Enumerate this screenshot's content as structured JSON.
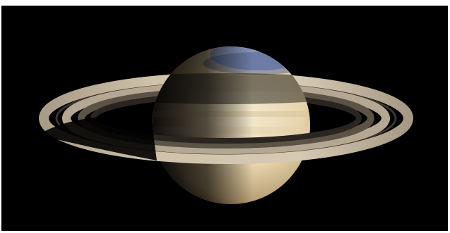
{
  "image": {
    "subject": "",
    "background_color": "#000000",
    "frame_color": "#ffffff",
    "colors": {
      "planet_light": "#efe2c2",
      "planet_mid": "#d8c49a",
      "planet_dark": "#3a2c1c",
      "ring_light": "#cdbfa8",
      "ring_mid": "#9c8f7c",
      "ring_dark": "#4a4238",
      "pole_blue": "#7b8fc4"
    }
  }
}
